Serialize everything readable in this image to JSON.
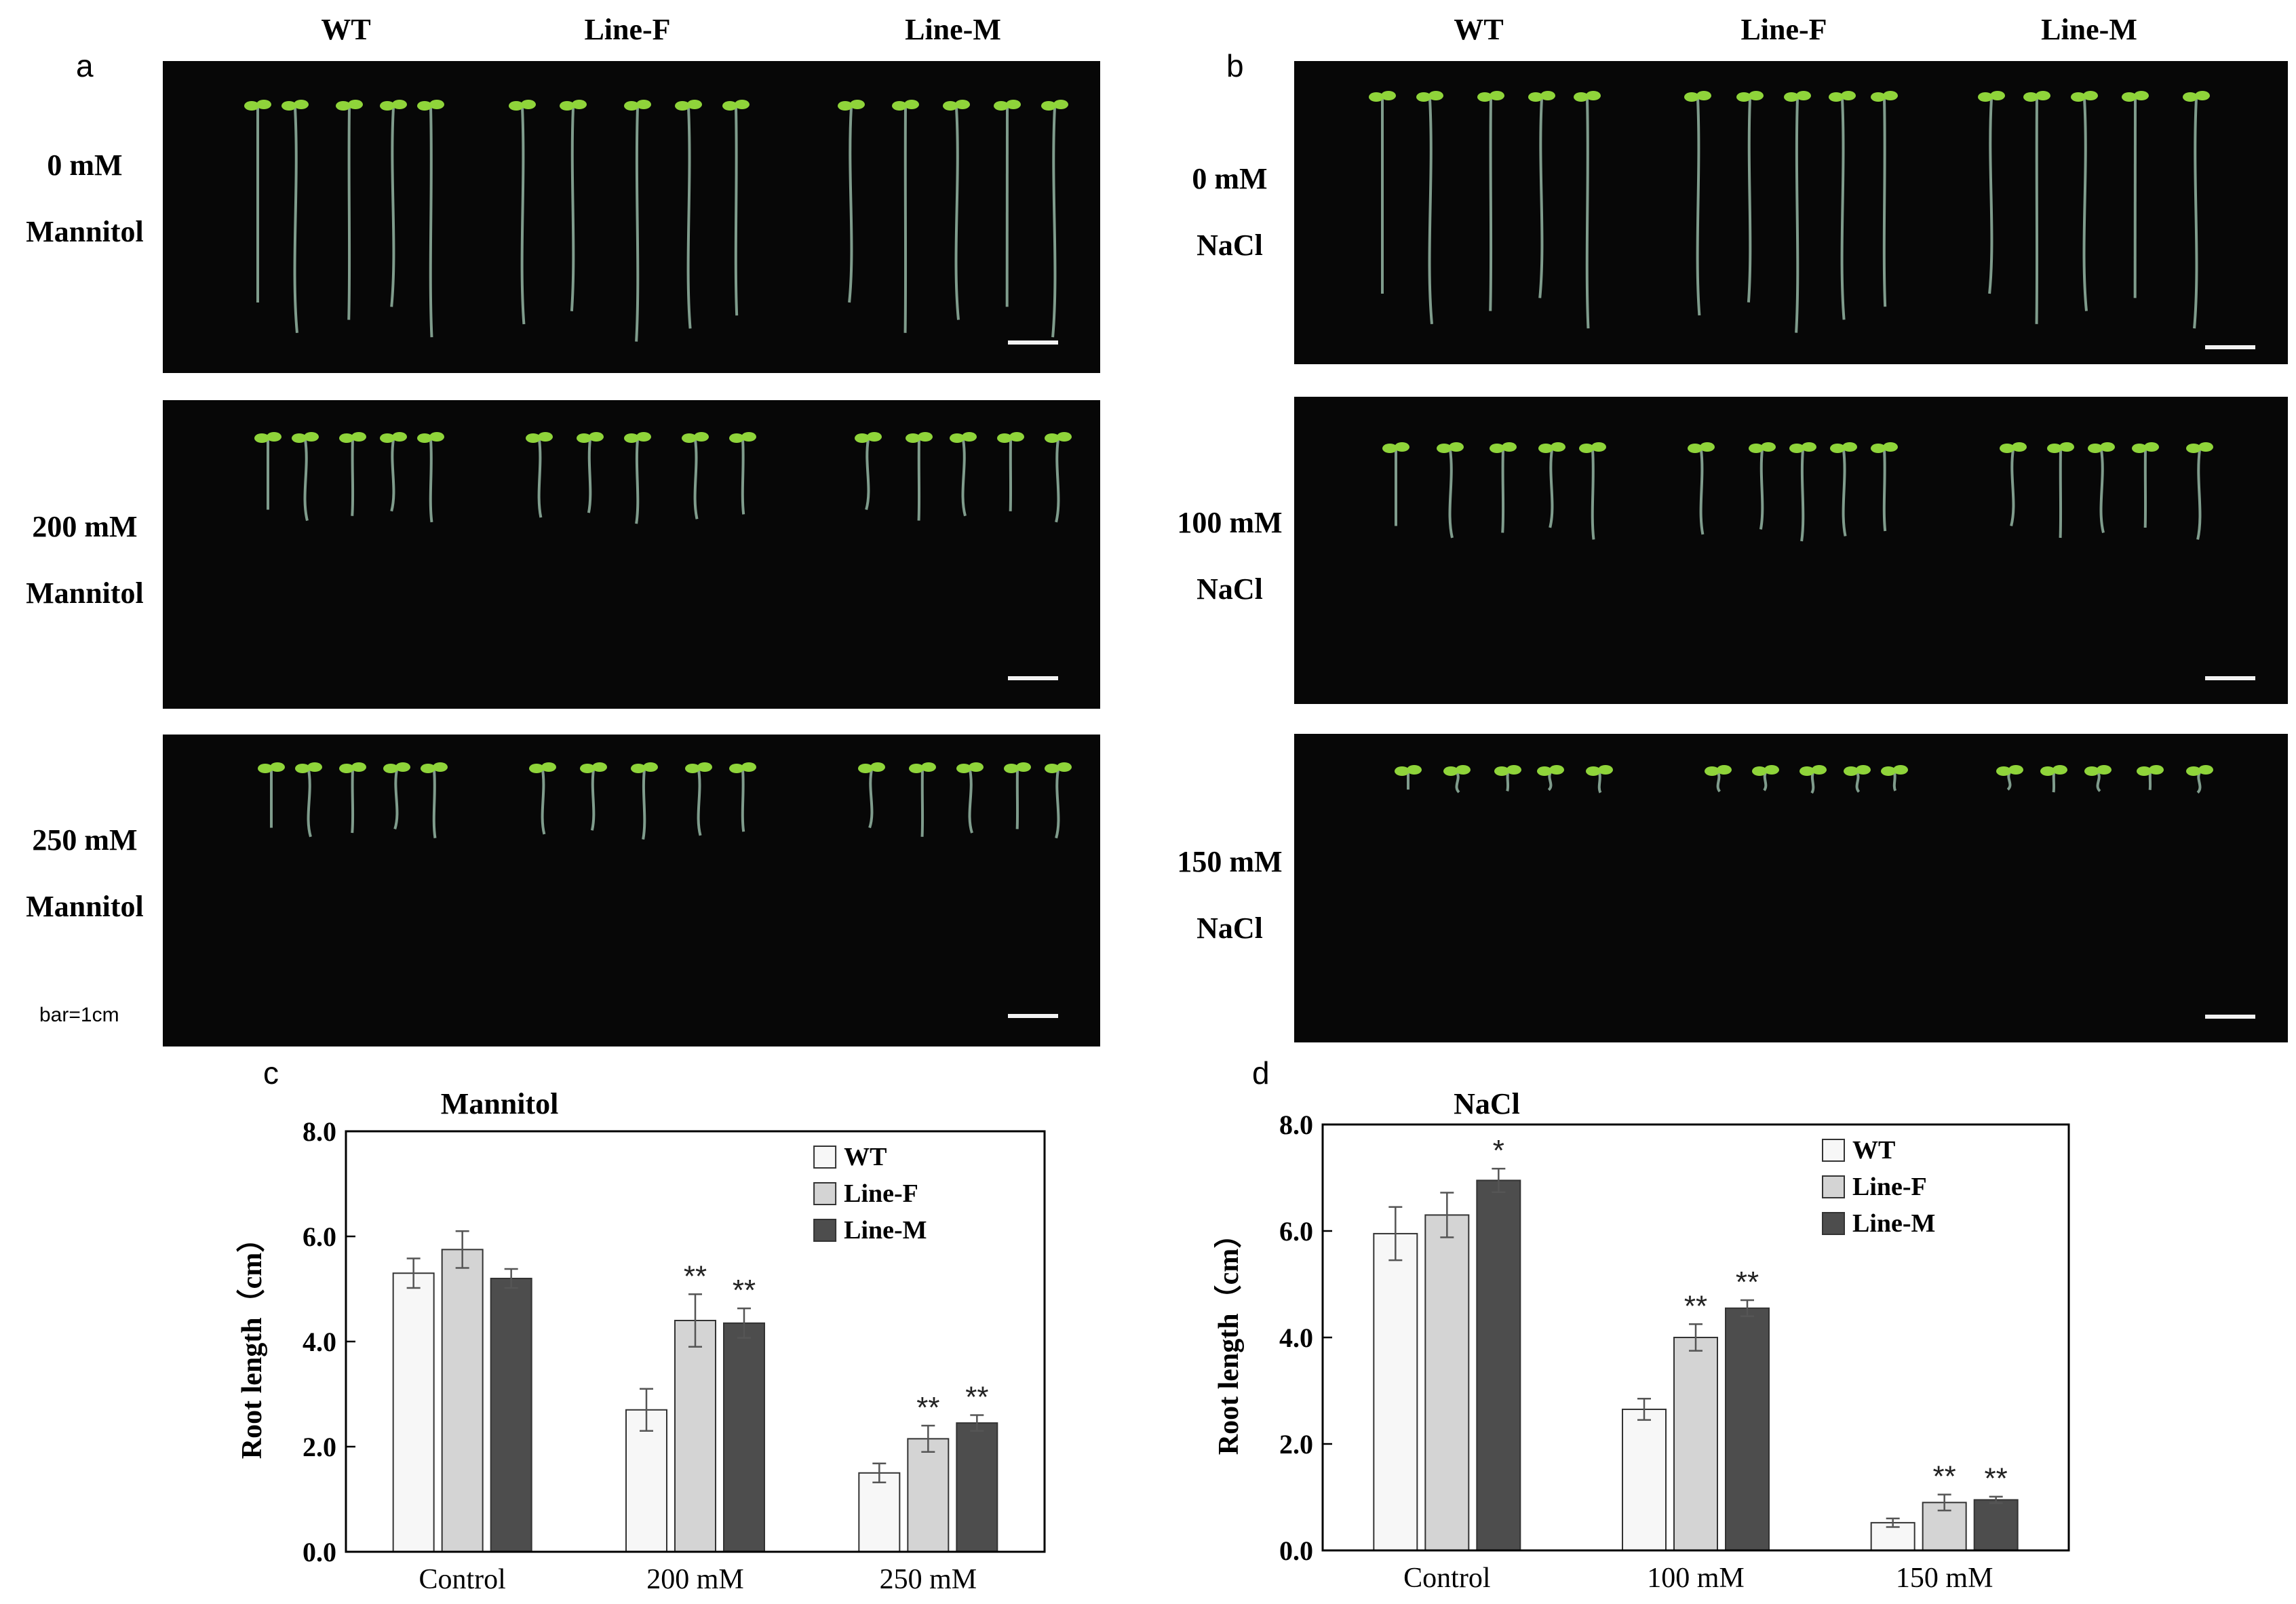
{
  "panel_letters": {
    "a": "a",
    "b": "b",
    "c": "c",
    "d": "d"
  },
  "genotypes": [
    "WT",
    "Line-F",
    "Line-M"
  ],
  "panel_a": {
    "columns": [
      "WT",
      "Line-F",
      "Line-M"
    ],
    "rows": [
      {
        "line1": "0 mM",
        "line2": "Mannitol"
      },
      {
        "line1": "200 mM",
        "line2": "Mannitol"
      },
      {
        "line1": "250 mM",
        "line2": "Mannitol"
      }
    ],
    "scale_note": "bar=1cm"
  },
  "panel_b": {
    "columns": [
      "WT",
      "Line-F",
      "Line-M"
    ],
    "rows": [
      {
        "line1": "0 mM",
        "line2": "NaCl"
      },
      {
        "line1": "100 mM",
        "line2": "NaCl"
      },
      {
        "line1": "150 mM",
        "line2": "NaCl"
      }
    ]
  },
  "colors": {
    "WT": "#f7f7f7",
    "Line-F": "#d4d4d4",
    "Line-M": "#4d4d4d",
    "photo_background": "#070707",
    "seedling_root": "#7f9c8c",
    "seedling_leaf": "#8fd43a"
  },
  "chart_data": [
    {
      "type": "bar",
      "title": "Mannitol",
      "ylabel": "Root length（cm）",
      "ylim": [
        0,
        8
      ],
      "yticks": [
        "0.0",
        "2.0",
        "4.0",
        "6.0",
        "8.0"
      ],
      "categories": [
        "Control",
        "200 mM",
        "250 mM"
      ],
      "legend": "top-right",
      "series": [
        {
          "name": "WT",
          "values": [
            5.3,
            2.7,
            1.5
          ],
          "errors": [
            0.28,
            0.4,
            0.18
          ],
          "sig": [
            "",
            "",
            ""
          ]
        },
        {
          "name": "Line-F",
          "values": [
            5.75,
            4.4,
            2.15
          ],
          "errors": [
            0.35,
            0.5,
            0.25
          ],
          "sig": [
            "",
            "**",
            "**"
          ]
        },
        {
          "name": "Line-M",
          "values": [
            5.2,
            4.35,
            2.45
          ],
          "errors": [
            0.18,
            0.28,
            0.15
          ],
          "sig": [
            "",
            "**",
            "**"
          ]
        }
      ]
    },
    {
      "type": "bar",
      "title": "NaCl",
      "ylabel": "Root length（cm）",
      "ylim": [
        0,
        8
      ],
      "yticks": [
        "0.0",
        "2.0",
        "4.0",
        "6.0",
        "8.0"
      ],
      "categories": [
        "Control",
        "100 mM",
        "150 mM"
      ],
      "legend": "top-right",
      "series": [
        {
          "name": "WT",
          "values": [
            5.95,
            2.65,
            0.52
          ],
          "errors": [
            0.5,
            0.2,
            0.08
          ],
          "sig": [
            "",
            "",
            ""
          ]
        },
        {
          "name": "Line-F",
          "values": [
            6.3,
            4.0,
            0.9
          ],
          "errors": [
            0.42,
            0.25,
            0.15
          ],
          "sig": [
            "",
            "**",
            "**"
          ]
        },
        {
          "name": "Line-M",
          "values": [
            6.95,
            4.55,
            0.95
          ],
          "errors": [
            0.22,
            0.15,
            0.06
          ],
          "sig": [
            "*",
            "**",
            "**"
          ]
        }
      ]
    }
  ]
}
